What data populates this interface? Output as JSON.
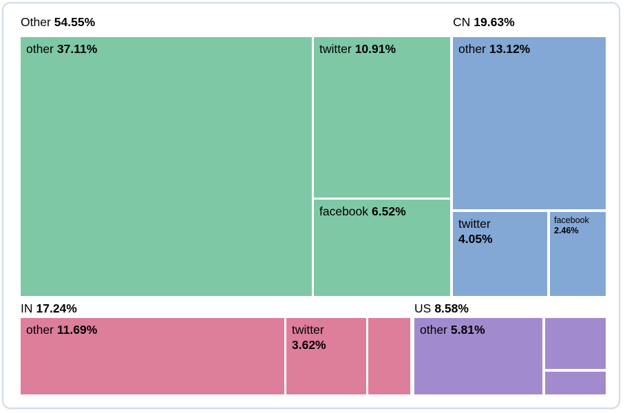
{
  "chart_data": {
    "type": "treemap",
    "title": "",
    "description": "Treemap of traffic share by region (Other, CN, IN, US), each split into other / twitter / facebook",
    "groups": [
      {
        "label": "Other",
        "pct_label": "54.55%",
        "value": 54.55,
        "color": "#7fc8a5",
        "cells": [
          {
            "label": "other",
            "pct_label": "37.11%",
            "value": 37.11,
            "label_visible": true
          },
          {
            "label": "twitter",
            "pct_label": "10.91%",
            "value": 10.91,
            "label_visible": true
          },
          {
            "label": "facebook",
            "pct_label": "6.52%",
            "value": 6.52,
            "label_visible": true
          }
        ]
      },
      {
        "label": "CN",
        "pct_label": "19.63%",
        "value": 19.63,
        "color": "#83a8d6",
        "cells": [
          {
            "label": "other",
            "pct_label": "13.12%",
            "value": 13.12,
            "label_visible": true
          },
          {
            "label": "twitter",
            "pct_label": "4.05%",
            "value": 4.05,
            "label_visible": true
          },
          {
            "label": "facebook",
            "pct_label": "2.46%",
            "value": 2.46,
            "label_visible": true
          }
        ]
      },
      {
        "label": "IN",
        "pct_label": "17.24%",
        "value": 17.24,
        "color": "#dd7e9b",
        "cells": [
          {
            "label": "other",
            "pct_label": "11.69%",
            "value": 11.69,
            "label_visible": true
          },
          {
            "label": "twitter",
            "pct_label": "3.62%",
            "value": 3.62,
            "label_visible": true
          },
          {
            "label": "",
            "pct_label": "",
            "value": 1.93,
            "label_visible": false,
            "estimated": true
          }
        ]
      },
      {
        "label": "US",
        "pct_label": "8.58%",
        "value": 8.58,
        "color": "#a28ace",
        "cells": [
          {
            "label": "other",
            "pct_label": "5.81%",
            "value": 5.81,
            "label_visible": true
          },
          {
            "label": "",
            "pct_label": "",
            "value": 1.85,
            "label_visible": false,
            "estimated": true
          },
          {
            "label": "",
            "pct_label": "",
            "value": 0.92,
            "label_visible": false,
            "estimated": true
          }
        ]
      }
    ],
    "layout": {
      "legend": false,
      "grid": false,
      "gap_color": "#ffffff"
    }
  }
}
